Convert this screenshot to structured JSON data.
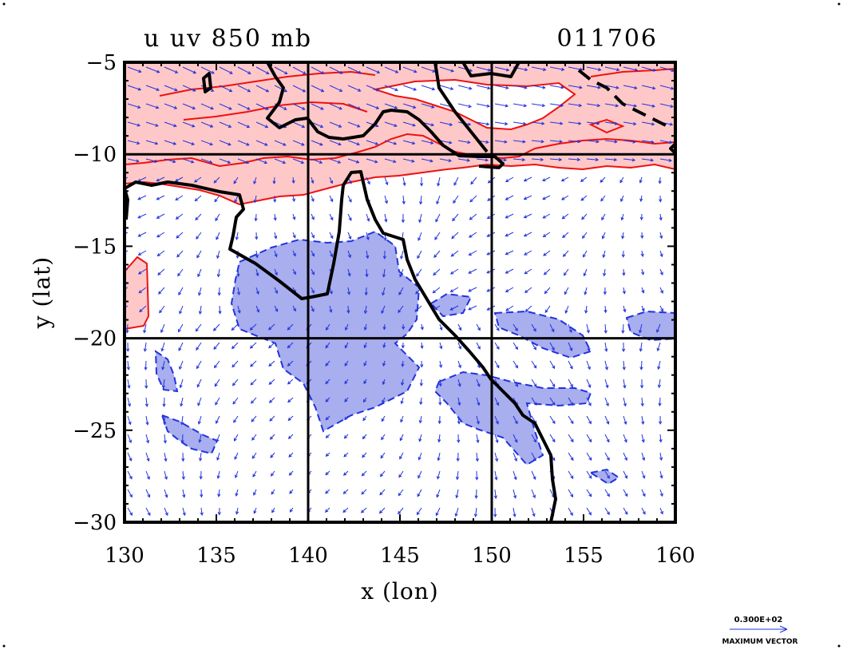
{
  "header": {
    "left_title": "u uv 850 mb",
    "right_title": "011706"
  },
  "axes": {
    "x_label": "x (lon)",
    "y_label": "y (lat)",
    "x_ticks": [
      "130",
      "135",
      "140",
      "145",
      "150",
      "155",
      "160"
    ],
    "y_ticks": [
      "−5",
      "−10",
      "−15",
      "−20",
      "−25",
      "−30"
    ],
    "x_range": [
      130,
      160
    ],
    "y_range": [
      -30,
      -5
    ]
  },
  "vector_legend": {
    "value": "0.300E+02",
    "caption": "MAXIMUM VECTOR"
  },
  "colors": {
    "positive_fill": "#ffc8c8",
    "positive_line": "#ee1111",
    "negative_fill": "#a8aeee",
    "negative_line": "#2233dd",
    "vector": "#2233dd",
    "coast": "#000000"
  }
}
